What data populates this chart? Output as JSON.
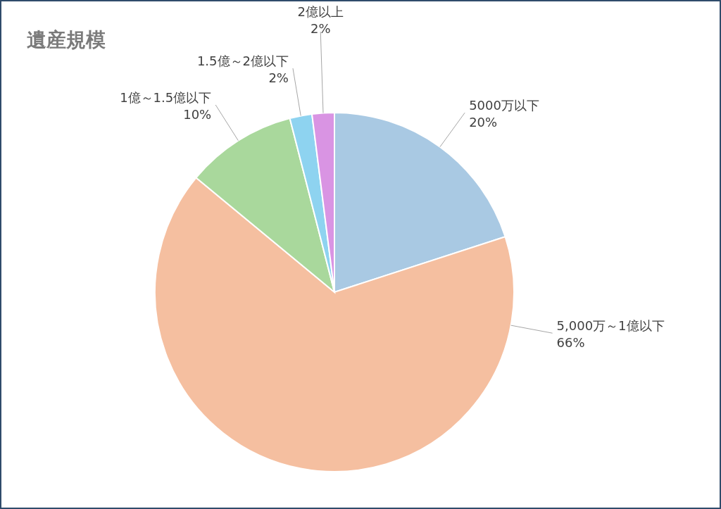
{
  "chart_data": {
    "type": "pie",
    "title": "遺産規模",
    "categories": [
      "5000万以下",
      "5,000万～1億以下",
      "1億～1.5億以下",
      "1.5億～2億以下",
      "2億以上"
    ],
    "values": [
      20,
      66,
      10,
      2,
      2
    ],
    "colors": [
      "#a9c9e3",
      "#f5bfa0",
      "#a9d89c",
      "#8ed3f0",
      "#d994e3"
    ],
    "value_labels": [
      "20%",
      "66%",
      "10%",
      "2%",
      "2%"
    ]
  }
}
